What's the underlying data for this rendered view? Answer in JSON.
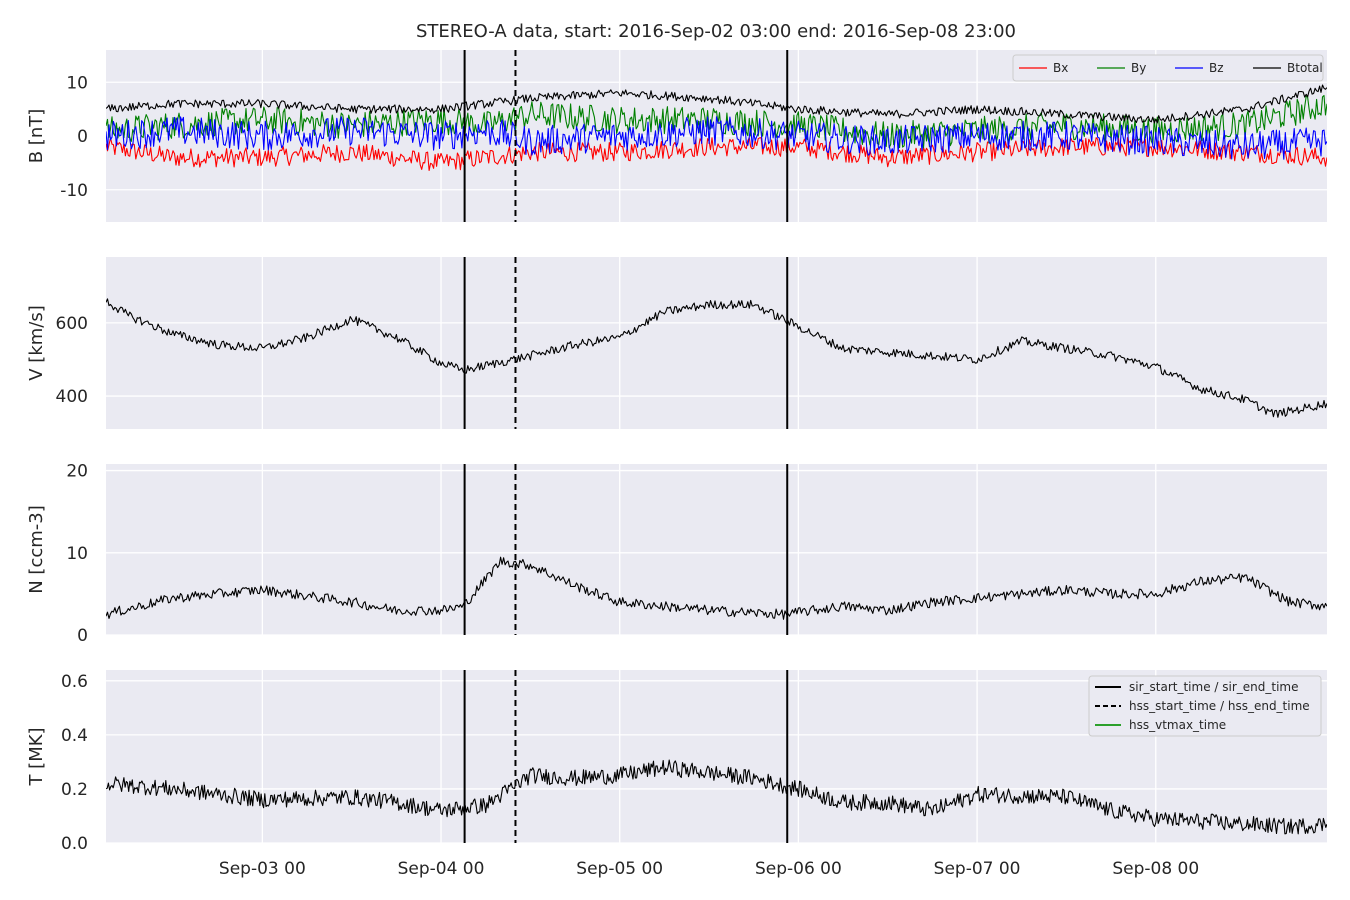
{
  "chart_data": {
    "type": "line",
    "title": "STEREO-A data, start: 2016-Sep-02 03:00  end: 2016-Sep-08 23:00",
    "x_range": [
      "2016-09-02T03:00",
      "2016-09-08T23:00"
    ],
    "x_ticks": [
      {
        "date": "2016-09-03T00:00",
        "label": "Sep-03 00"
      },
      {
        "date": "2016-09-04T00:00",
        "label": "Sep-04 00"
      },
      {
        "date": "2016-09-05T00:00",
        "label": "Sep-05 00"
      },
      {
        "date": "2016-09-06T00:00",
        "label": "Sep-06 00"
      },
      {
        "date": "2016-09-07T00:00",
        "label": "Sep-07 00"
      },
      {
        "date": "2016-09-08T00:00",
        "label": "Sep-08 00"
      }
    ],
    "event_lines": [
      {
        "type": "sir_start_time",
        "date": "2016-09-04T03:10",
        "style": "solid"
      },
      {
        "type": "hss_start_time",
        "date": "2016-09-04T10:00",
        "style": "dashed"
      },
      {
        "type": "sir_end_time",
        "date": "2016-09-05T22:30",
        "style": "solid"
      }
    ],
    "grid": true,
    "background": "#eaeaf2",
    "panels": [
      {
        "id": "B",
        "ylabel": "B [nT]",
        "ylim": [
          -16,
          16
        ],
        "yticks": [
          -10,
          0,
          10
        ],
        "legend_loc": "upper right",
        "series": [
          {
            "name": "Bx",
            "color": "#ff0000",
            "x": [
              "2016-09-02T03:00",
              "2016-09-02T12:00",
              "2016-09-03T00:00",
              "2016-09-03T12:00",
              "2016-09-04T00:00",
              "2016-09-04T06:00",
              "2016-09-04T12:00",
              "2016-09-05T00:00",
              "2016-09-05T12:00",
              "2016-09-06T00:00",
              "2016-09-06T12:00",
              "2016-09-07T00:00",
              "2016-09-07T12:00",
              "2016-09-08T00:00",
              "2016-09-08T12:00",
              "2016-09-08T23:00"
            ],
            "y": [
              -2,
              -4,
              -4,
              -3,
              -5,
              -4,
              -3,
              -3,
              -2,
              -2,
              -4,
              -3,
              -2,
              -2,
              -3,
              -4
            ]
          },
          {
            "name": "By",
            "color": "#008000",
            "x": [
              "2016-09-02T03:00",
              "2016-09-02T12:00",
              "2016-09-03T00:00",
              "2016-09-03T12:00",
              "2016-09-04T00:00",
              "2016-09-04T06:00",
              "2016-09-04T12:00",
              "2016-09-05T00:00",
              "2016-09-05T12:00",
              "2016-09-06T00:00",
              "2016-09-06T12:00",
              "2016-09-07T00:00",
              "2016-09-07T12:00",
              "2016-09-08T00:00",
              "2016-09-08T12:00",
              "2016-09-08T23:00"
            ],
            "y": [
              1,
              2,
              3,
              2,
              3,
              2,
              4,
              3,
              3,
              2,
              0,
              1,
              2,
              1,
              2,
              6
            ]
          },
          {
            "name": "Bz",
            "color": "#0000ff",
            "x": [
              "2016-09-02T03:00",
              "2016-09-02T12:00",
              "2016-09-03T00:00",
              "2016-09-03T12:00",
              "2016-09-04T00:00",
              "2016-09-04T06:00",
              "2016-09-04T12:00",
              "2016-09-05T00:00",
              "2016-09-05T12:00",
              "2016-09-06T00:00",
              "2016-09-06T12:00",
              "2016-09-07T00:00",
              "2016-09-07T12:00",
              "2016-09-08T00:00",
              "2016-09-08T12:00",
              "2016-09-08T23:00"
            ],
            "y": [
              0,
              1,
              0,
              1,
              0,
              1,
              -1,
              0,
              1,
              0,
              -1,
              0,
              0,
              -1,
              -2,
              -1
            ]
          },
          {
            "name": "Btotal",
            "color": "#000000",
            "x": [
              "2016-09-02T03:00",
              "2016-09-02T12:00",
              "2016-09-03T00:00",
              "2016-09-03T12:00",
              "2016-09-04T00:00",
              "2016-09-04T06:00",
              "2016-09-04T12:00",
              "2016-09-05T00:00",
              "2016-09-05T12:00",
              "2016-09-06T00:00",
              "2016-09-06T12:00",
              "2016-09-07T00:00",
              "2016-09-07T12:00",
              "2016-09-08T00:00",
              "2016-09-08T12:00",
              "2016-09-08T23:00"
            ],
            "y": [
              5,
              6,
              6,
              5,
              5,
              6,
              7,
              8,
              7,
              5,
              4,
              5,
              4,
              3,
              5,
              9
            ]
          }
        ]
      },
      {
        "id": "V",
        "ylabel": "V [km/s]",
        "ylim": [
          310,
          780
        ],
        "yticks": [
          400,
          600
        ],
        "series": [
          {
            "name": "V",
            "color": "#000000",
            "x": [
              "2016-09-02T03:00",
              "2016-09-02T06:00",
              "2016-09-02T12:00",
              "2016-09-02T18:00",
              "2016-09-03T00:00",
              "2016-09-03T06:00",
              "2016-09-03T12:00",
              "2016-09-03T18:00",
              "2016-09-04T00:00",
              "2016-09-04T03:00",
              "2016-09-04T12:00",
              "2016-09-04T18:00",
              "2016-09-05T00:00",
              "2016-09-05T06:00",
              "2016-09-05T12:00",
              "2016-09-05T18:00",
              "2016-09-05T22:00",
              "2016-09-06T06:00",
              "2016-09-06T12:00",
              "2016-09-06T18:00",
              "2016-09-07T00:00",
              "2016-09-07T06:00",
              "2016-09-07T12:00",
              "2016-09-07T18:00",
              "2016-09-08T00:00",
              "2016-09-08T06:00",
              "2016-09-08T12:00",
              "2016-09-08T16:00",
              "2016-09-08T23:00"
            ],
            "y": [
              660,
              620,
              570,
              540,
              530,
              560,
              610,
              560,
              490,
              470,
              510,
              540,
              560,
              630,
              650,
              650,
              610,
              530,
              520,
              510,
              500,
              550,
              530,
              510,
              480,
              420,
              390,
              350,
              380
            ]
          }
        ]
      },
      {
        "id": "N",
        "ylabel": "N [ccm-3]",
        "ylim": [
          0,
          20.8
        ],
        "yticks": [
          0,
          10,
          20
        ],
        "series": [
          {
            "name": "N",
            "color": "#000000",
            "x": [
              "2016-09-02T03:00",
              "2016-09-02T12:00",
              "2016-09-02T18:00",
              "2016-09-03T00:00",
              "2016-09-03T12:00",
              "2016-09-03T18:00",
              "2016-09-04T00:00",
              "2016-09-04T03:00",
              "2016-09-04T08:00",
              "2016-09-04T12:00",
              "2016-09-04T18:00",
              "2016-09-05T00:00",
              "2016-09-05T12:00",
              "2016-09-05T22:00",
              "2016-09-06T06:00",
              "2016-09-06T12:00",
              "2016-09-06T18:00",
              "2016-09-07T00:00",
              "2016-09-07T12:00",
              "2016-09-07T18:00",
              "2016-09-08T00:00",
              "2016-09-08T06:00",
              "2016-09-08T12:00",
              "2016-09-08T18:00",
              "2016-09-08T23:00"
            ],
            "y": [
              2.5,
              4.5,
              5,
              5.5,
              4,
              3,
              3,
              3.5,
              9,
              8.5,
              6,
              4,
              3,
              2.5,
              3.5,
              3,
              4,
              4.5,
              5.5,
              5,
              5,
              6.5,
              7,
              4,
              3.5
            ]
          }
        ]
      },
      {
        "id": "T",
        "ylabel": "T [MK]",
        "ylim": [
          0,
          0.64
        ],
        "yticks": [
          0.0,
          0.2,
          0.4,
          0.6
        ],
        "legend_loc": "upper right",
        "legend": [
          {
            "label": "sir_start_time / sir_end_time",
            "color": "#000000",
            "style": "solid"
          },
          {
            "label": "hss_start_time / hss_end_time",
            "color": "#000000",
            "style": "dashed"
          },
          {
            "label": "hss_vtmax_time",
            "color": "#2ca02c",
            "style": "solid"
          }
        ],
        "series": [
          {
            "name": "T",
            "color": "#000000",
            "x": [
              "2016-09-02T03:00",
              "2016-09-02T12:00",
              "2016-09-03T00:00",
              "2016-09-03T12:00",
              "2016-09-03T18:00",
              "2016-09-04T00:00",
              "2016-09-04T06:00",
              "2016-09-04T12:00",
              "2016-09-04T18:00",
              "2016-09-05T00:00",
              "2016-09-05T06:00",
              "2016-09-05T12:00",
              "2016-09-05T18:00",
              "2016-09-06T00:00",
              "2016-09-06T06:00",
              "2016-09-06T12:00",
              "2016-09-06T18:00",
              "2016-09-07T00:00",
              "2016-09-07T12:00",
              "2016-09-07T18:00",
              "2016-09-08T00:00",
              "2016-09-08T12:00",
              "2016-09-08T18:00",
              "2016-09-08T23:00"
            ],
            "y": [
              0.22,
              0.2,
              0.16,
              0.17,
              0.15,
              0.12,
              0.14,
              0.25,
              0.24,
              0.25,
              0.28,
              0.26,
              0.24,
              0.2,
              0.15,
              0.15,
              0.12,
              0.18,
              0.17,
              0.12,
              0.09,
              0.07,
              0.06,
              0.07
            ]
          }
        ]
      }
    ]
  }
}
